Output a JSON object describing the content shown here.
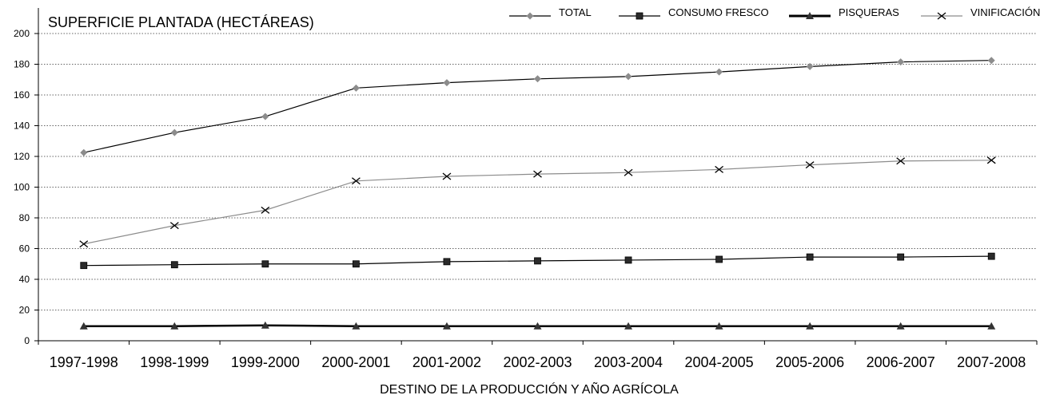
{
  "chart_data": {
    "type": "line",
    "title": "SUPERFICIE PLANTADA (HECTÁREAS)",
    "xlabel": "DESTINO DE LA PRODUCCIÓN Y AÑO AGRÍCOLA",
    "ylabel": "",
    "ylim": [
      0,
      200
    ],
    "yticks": [
      0,
      20,
      40,
      60,
      80,
      100,
      120,
      140,
      160,
      180,
      200
    ],
    "grid": "horizontal dotted",
    "legend_position": "top",
    "categories": [
      "1997-1998",
      "1998-1999",
      "1999-2000",
      "2000-2001",
      "2001-2002",
      "2002-2003",
      "2003-2004",
      "2004-2005",
      "2005-2006",
      "2006-2007",
      "2007-2008"
    ],
    "series": [
      {
        "name": "TOTAL",
        "marker": "diamond",
        "line_color": "#000000",
        "marker_color": "#8c8c8c",
        "values": [
          122.5,
          135.5,
          146,
          164.5,
          168,
          170.5,
          172,
          175,
          178.5,
          181.5,
          182.5
        ]
      },
      {
        "name": "CONSUMO FRESCO",
        "marker": "square",
        "line_color": "#000000",
        "marker_color": "#2a2a2a",
        "values": [
          49,
          49.5,
          50,
          50,
          51.5,
          52,
          52.5,
          53,
          54.5,
          54.5,
          55
        ]
      },
      {
        "name": "PISQUERAS",
        "marker": "triangle",
        "line_color": "#000000",
        "marker_color": "#333333",
        "values": [
          9.5,
          9.5,
          10,
          9.5,
          9.5,
          9.5,
          9.5,
          9.5,
          9.5,
          9.5,
          9.5
        ]
      },
      {
        "name": "VINIFICACIÓN",
        "marker": "x",
        "line_color": "#8c8c8c",
        "marker_color": "#000000",
        "values": [
          63,
          75,
          85,
          104,
          107,
          108.5,
          109.5,
          111.5,
          114.5,
          117,
          117.5
        ]
      }
    ]
  }
}
